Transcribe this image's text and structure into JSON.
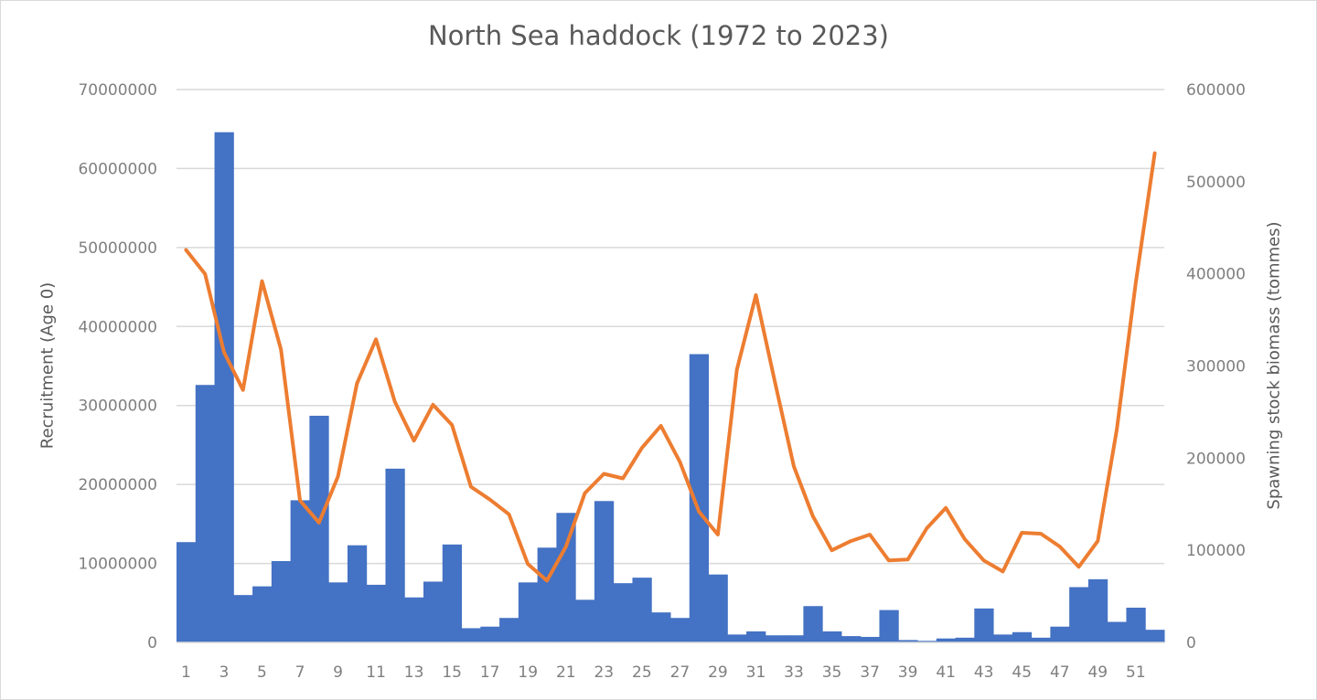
{
  "chart_data": {
    "type": "bar+line",
    "title": "North Sea haddock (1972 to 2023)",
    "xlabel": "",
    "ylabel": "Recruitment (Age 0)",
    "y2label": "Spawning stock biomass (tommes)",
    "ylim": [
      0,
      70000000
    ],
    "y2lim": [
      0,
      600000
    ],
    "y_ticks": [
      "0",
      "10000000",
      "20000000",
      "30000000",
      "40000000",
      "50000000",
      "60000000",
      "70000000"
    ],
    "y2_ticks": [
      "0",
      "100000",
      "200000",
      "300000",
      "400000",
      "500000",
      "600000"
    ],
    "x_tick_labels": [
      "1",
      "3",
      "5",
      "7",
      "9",
      "11",
      "13",
      "15",
      "17",
      "19",
      "21",
      "23",
      "25",
      "27",
      "29",
      "31",
      "33",
      "35",
      "37",
      "39",
      "41",
      "43",
      "45",
      "47",
      "49",
      "51"
    ],
    "grid": true,
    "legend": "none",
    "categories": [
      1,
      2,
      3,
      4,
      5,
      6,
      7,
      8,
      9,
      10,
      11,
      12,
      13,
      14,
      15,
      16,
      17,
      18,
      19,
      20,
      21,
      22,
      23,
      24,
      25,
      26,
      27,
      28,
      29,
      30,
      31,
      32,
      33,
      34,
      35,
      36,
      37,
      38,
      39,
      40,
      41,
      42,
      43,
      44,
      45,
      46,
      47,
      48,
      49,
      50,
      51,
      52
    ],
    "series": [
      {
        "name": "Recruitment (Age 0)",
        "type": "bar",
        "axis": "left",
        "color": "#4472c4",
        "values": [
          12700000,
          32600000,
          64600000,
          6000000,
          7100000,
          10300000,
          18000000,
          28700000,
          7600000,
          12300000,
          7300000,
          22000000,
          5700000,
          7700000,
          12400000,
          1800000,
          2000000,
          3100000,
          7600000,
          12000000,
          16400000,
          5400000,
          17900000,
          7500000,
          8200000,
          3800000,
          3100000,
          36500000,
          8600000,
          1000000,
          1400000,
          900000,
          900000,
          4600000,
          1400000,
          800000,
          700000,
          4100000,
          300000,
          200000,
          500000,
          600000,
          4300000,
          1000000,
          1300000,
          600000,
          2000000,
          7000000,
          8000000,
          2600000,
          4400000,
          1600000
        ]
      },
      {
        "name": "Spawning stock biomass (tommes)",
        "type": "line",
        "axis": "right",
        "color": "#ed7d31",
        "values": [
          426000,
          400000,
          315000,
          274000,
          392000,
          318000,
          154000,
          130000,
          180000,
          281000,
          329000,
          261000,
          219000,
          258000,
          236000,
          169000,
          155000,
          139000,
          85000,
          67000,
          104000,
          162000,
          183000,
          178000,
          211000,
          235000,
          196000,
          142000,
          117000,
          296000,
          377000,
          283000,
          191000,
          137000,
          100000,
          110000,
          117000,
          89000,
          90000,
          124000,
          146000,
          112000,
          89000,
          77000,
          119000,
          118000,
          104000,
          82000,
          110000,
          231000,
          390000,
          531000
        ]
      }
    ]
  }
}
